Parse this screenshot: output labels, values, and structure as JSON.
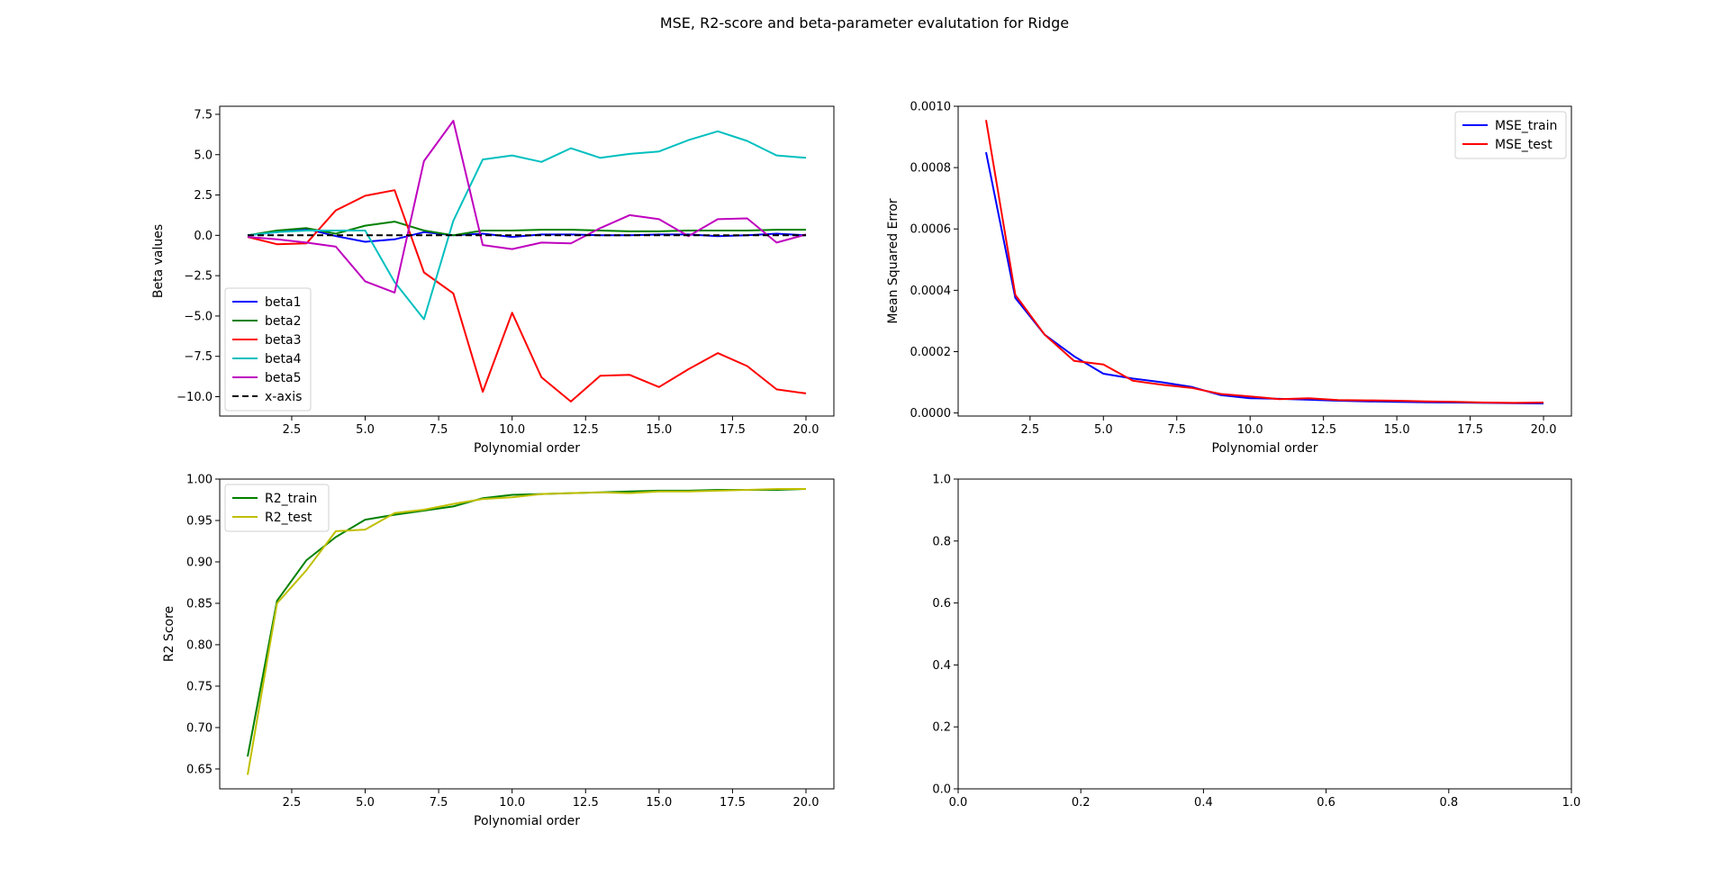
{
  "figure": {
    "suptitle": "MSE, R2-score and beta-parameter evalutation for Ridge"
  },
  "colors": {
    "beta1": "#0000ff",
    "beta2": "#008000",
    "beta3": "#ff0000",
    "beta4": "#00bfbf",
    "beta5": "#bf00bf",
    "xaxis": "#000000",
    "mse_train": "#0000ff",
    "mse_test": "#ff0000",
    "r2_train": "#008000",
    "r2_test": "#bfbf00"
  },
  "chart_data": [
    {
      "type": "line",
      "xlabel": "Polynomial order",
      "ylabel": "Beta values",
      "xlim": [
        0.05,
        20.95
      ],
      "ylim": [
        -11.2,
        8.0
      ],
      "xticks": [
        2.5,
        5.0,
        7.5,
        10.0,
        12.5,
        15.0,
        17.5,
        20.0
      ],
      "xticklabels": [
        "2.5",
        "5.0",
        "7.5",
        "10.0",
        "12.5",
        "15.0",
        "17.5",
        "20.0"
      ],
      "yticks": [
        -10.0,
        -7.5,
        -5.0,
        -2.5,
        0.0,
        2.5,
        5.0,
        7.5
      ],
      "yticklabels": [
        "−10.0",
        "−7.5",
        "−5.0",
        "−2.5",
        "0.0",
        "2.5",
        "5.0",
        "7.5"
      ],
      "legend": "lower-left",
      "x": [
        1,
        2,
        3,
        4,
        5,
        6,
        7,
        8,
        9,
        10,
        11,
        12,
        13,
        14,
        15,
        16,
        17,
        18,
        19,
        20
      ],
      "series": [
        {
          "name": "beta1",
          "color": "beta1",
          "dashed": false,
          "values": [
            0.0,
            0.2,
            0.4,
            -0.05,
            -0.4,
            -0.25,
            0.2,
            0.0,
            0.1,
            -0.1,
            0.05,
            0.05,
            0.0,
            0.0,
            0.05,
            0.05,
            -0.05,
            0.0,
            0.1,
            0.0
          ]
        },
        {
          "name": "beta2",
          "color": "beta2",
          "dashed": false,
          "values": [
            0.0,
            0.3,
            0.45,
            0.1,
            0.6,
            0.85,
            0.3,
            0.0,
            0.3,
            0.3,
            0.35,
            0.35,
            0.3,
            0.25,
            0.25,
            0.3,
            0.3,
            0.3,
            0.35,
            0.35
          ]
        },
        {
          "name": "beta3",
          "color": "beta3",
          "dashed": false,
          "values": [
            -0.1,
            -0.55,
            -0.5,
            1.55,
            2.45,
            2.8,
            -2.3,
            -3.6,
            -9.7,
            -4.8,
            -8.8,
            -10.3,
            -8.7,
            -8.65,
            -9.4,
            -8.3,
            -7.3,
            -8.1,
            -9.55,
            -9.8
          ]
        },
        {
          "name": "beta4",
          "color": "beta4",
          "dashed": false,
          "values": [
            0.0,
            0.2,
            0.3,
            0.3,
            0.3,
            -2.9,
            -5.2,
            0.9,
            4.7,
            4.95,
            4.55,
            5.4,
            4.8,
            5.05,
            5.2,
            5.9,
            6.45,
            5.85,
            4.95,
            4.8
          ]
        },
        {
          "name": "beta5",
          "color": "beta5",
          "dashed": false,
          "values": [
            -0.1,
            -0.25,
            -0.45,
            -0.7,
            -2.85,
            -3.55,
            4.6,
            7.1,
            -0.6,
            -0.85,
            -0.45,
            -0.5,
            0.45,
            1.25,
            1.0,
            -0.05,
            1.0,
            1.05,
            -0.45,
            0.05
          ]
        },
        {
          "name": "x-axis",
          "color": "xaxis",
          "dashed": true,
          "values": [
            0,
            0,
            0,
            0,
            0,
            0,
            0,
            0,
            0,
            0,
            0,
            0,
            0,
            0,
            0,
            0,
            0,
            0,
            0,
            0
          ]
        }
      ]
    },
    {
      "type": "line",
      "xlabel": "Polynomial order",
      "ylabel": "Mean Squared Error",
      "xlim": [
        0.05,
        20.95
      ],
      "ylim": [
        -1e-05,
        0.001
      ],
      "xticks": [
        2.5,
        5.0,
        7.5,
        10.0,
        12.5,
        15.0,
        17.5,
        20.0
      ],
      "xticklabels": [
        "2.5",
        "5.0",
        "7.5",
        "10.0",
        "12.5",
        "15.0",
        "17.5",
        "20.0"
      ],
      "yticks": [
        0.0,
        0.0002,
        0.0004,
        0.0006,
        0.0008,
        0.001
      ],
      "yticklabels": [
        "0.0000",
        "0.0002",
        "0.0004",
        "0.0006",
        "0.0008",
        "0.0010"
      ],
      "legend": "top-right",
      "x": [
        1,
        2,
        3,
        4,
        5,
        6,
        7,
        8,
        9,
        10,
        11,
        12,
        13,
        14,
        15,
        16,
        17,
        18,
        19,
        20
      ],
      "series": [
        {
          "name": "MSE_train",
          "color": "mse_train",
          "dashed": false,
          "values": [
            0.00085,
            0.000375,
            0.000255,
            0.000185,
            0.000128,
            0.000112,
            0.0001,
            8.5e-05,
            5.8e-05,
            4.8e-05,
            4.6e-05,
            4.3e-05,
            4e-05,
            3.8e-05,
            3.6e-05,
            3.5e-05,
            3.4e-05,
            3.3e-05,
            3.2e-05,
            3.1e-05
          ]
        },
        {
          "name": "MSE_test",
          "color": "mse_test",
          "dashed": false,
          "values": [
            0.000955,
            0.000385,
            0.000255,
            0.00017,
            0.000158,
            0.000105,
            9.2e-05,
            8.2e-05,
            6.2e-05,
            5.4e-05,
            4.5e-05,
            4.8e-05,
            4.2e-05,
            4.1e-05,
            4e-05,
            3.8e-05,
            3.6e-05,
            3.4e-05,
            3.3e-05,
            3.4e-05
          ]
        }
      ]
    },
    {
      "type": "line",
      "xlabel": "Polynomial order",
      "ylabel": "R2 Score",
      "xlim": [
        0.05,
        20.95
      ],
      "ylim": [
        0.626,
        1.0
      ],
      "xticks": [
        2.5,
        5.0,
        7.5,
        10.0,
        12.5,
        15.0,
        17.5,
        20.0
      ],
      "xticklabels": [
        "2.5",
        "5.0",
        "7.5",
        "10.0",
        "12.5",
        "15.0",
        "17.5",
        "20.0"
      ],
      "yticks": [
        0.65,
        0.7,
        0.75,
        0.8,
        0.85,
        0.9,
        0.95,
        1.0
      ],
      "yticklabels": [
        "0.65",
        "0.70",
        "0.75",
        "0.80",
        "0.85",
        "0.90",
        "0.95",
        "1.00"
      ],
      "legend": "top-left",
      "x": [
        1,
        2,
        3,
        4,
        5,
        6,
        7,
        8,
        9,
        10,
        11,
        12,
        13,
        14,
        15,
        16,
        17,
        18,
        19,
        20
      ],
      "series": [
        {
          "name": "R2_train",
          "color": "r2_train",
          "dashed": false,
          "values": [
            0.665,
            0.853,
            0.902,
            0.93,
            0.951,
            0.957,
            0.962,
            0.967,
            0.977,
            0.981,
            0.982,
            0.983,
            0.984,
            0.985,
            0.986,
            0.986,
            0.987,
            0.987,
            0.987,
            0.988
          ]
        },
        {
          "name": "R2_test",
          "color": "r2_test",
          "dashed": false,
          "values": [
            0.643,
            0.85,
            0.89,
            0.937,
            0.939,
            0.959,
            0.963,
            0.97,
            0.976,
            0.978,
            0.982,
            0.983,
            0.984,
            0.983,
            0.985,
            0.985,
            0.986,
            0.987,
            0.988,
            0.988
          ]
        }
      ]
    },
    {
      "type": "line",
      "xlabel": "",
      "ylabel": "",
      "xlim": [
        0.0,
        1.0
      ],
      "ylim": [
        0.0,
        1.0
      ],
      "xticks": [
        0.0,
        0.2,
        0.4,
        0.6,
        0.8,
        1.0
      ],
      "xticklabels": [
        "0.0",
        "0.2",
        "0.4",
        "0.6",
        "0.8",
        "1.0"
      ],
      "yticks": [
        0.0,
        0.2,
        0.4,
        0.6,
        0.8,
        1.0
      ],
      "yticklabels": [
        "0.0",
        "0.2",
        "0.4",
        "0.6",
        "0.8",
        "1.0"
      ],
      "legend": "",
      "x": [],
      "series": []
    }
  ]
}
